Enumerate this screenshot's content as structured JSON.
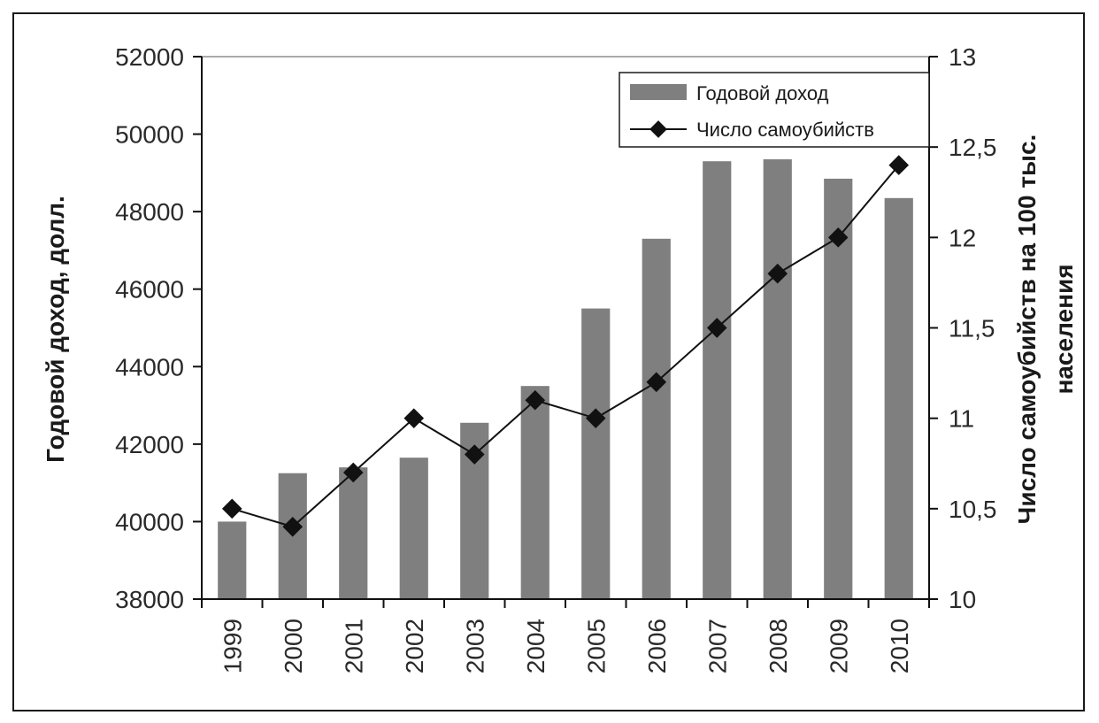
{
  "chart_data": {
    "type": "bar+line",
    "categories": [
      "1999",
      "2000",
      "2001",
      "2002",
      "2003",
      "2004",
      "2005",
      "2006",
      "2007",
      "2008",
      "2009",
      "2010"
    ],
    "series": [
      {
        "name": "Годовой доход",
        "type": "bar",
        "axis": "left",
        "color": "#7f7f7f",
        "values": [
          40000,
          41250,
          41400,
          41650,
          42550,
          43500,
          45500,
          47300,
          49300,
          49350,
          48850,
          48350
        ]
      },
      {
        "name": "Число самоубийств",
        "type": "line",
        "axis": "right",
        "color": "#111111",
        "values": [
          10.5,
          10.4,
          10.7,
          11.0,
          10.8,
          11.1,
          11.0,
          11.2,
          11.5,
          11.8,
          12.0,
          12.4
        ]
      }
    ],
    "y_left": {
      "label": "Годовой доход, долл.",
      "ylim": [
        38000,
        52000
      ],
      "ticks": [
        "38000",
        "40000",
        "42000",
        "44000",
        "46000",
        "48000",
        "50000",
        "52000"
      ]
    },
    "y_right": {
      "label_line1": "Число самоубийств на 100 тыс.",
      "label_line2": "населения",
      "ylim": [
        10,
        13
      ],
      "ticks": [
        "10",
        "10,5",
        "11",
        "11,5",
        "12",
        "12,5",
        "13"
      ]
    },
    "legend": {
      "position": "top-right",
      "entries": [
        "Годовой доход",
        "Число самоубийств"
      ]
    },
    "grid": false
  }
}
